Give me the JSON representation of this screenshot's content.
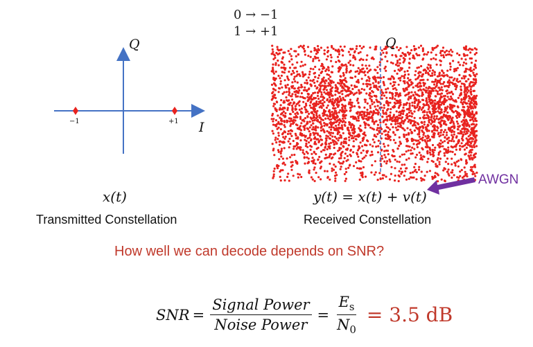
{
  "mapping": {
    "line1": "0 → −1",
    "line2": "1 → +1"
  },
  "tx": {
    "axis_q": "Q",
    "axis_i": "I",
    "tick_neg": "−1",
    "tick_pos": "+1",
    "signal_label": "x(t)",
    "caption": "Transmitted Constellation"
  },
  "rx": {
    "axis_q": "Q",
    "equation": "y(t) = x(t) + v(t)",
    "noise_label": "AWGN",
    "caption": "Received Constellation"
  },
  "question": "How well we can decode depends on SNR?",
  "snr": {
    "lhs": "SNR",
    "frac1_num": "Signal Power",
    "frac1_den": "Noise Power",
    "frac2_num": "E",
    "frac2_num_sub": "s",
    "frac2_den": "N",
    "frac2_den_sub": "0",
    "value": "= 3.5 dB"
  },
  "colors": {
    "axis": "#4472c4",
    "points": "#e8231f",
    "arrow": "#7030a0",
    "accent_text": "#c0392b"
  }
}
